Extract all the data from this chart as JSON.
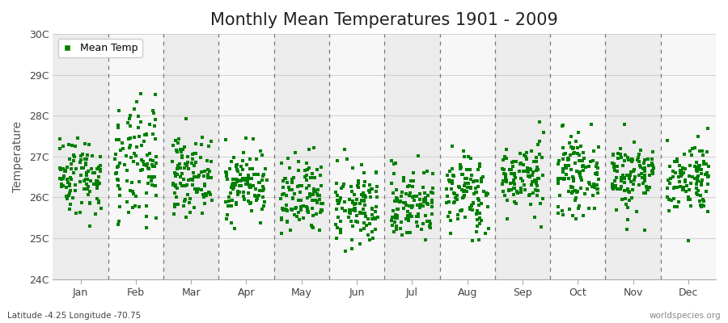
{
  "title": "Monthly Mean Temperatures 1901 - 2009",
  "ylabel": "Temperature",
  "xlabel_bottom_left": "Latitude -4.25 Longitude -70.75",
  "xlabel_bottom_right": "worldspecies.org",
  "legend_label": "Mean Temp",
  "marker_color": "#008000",
  "marker_size": 2.5,
  "months": [
    "Jan",
    "Feb",
    "Mar",
    "Apr",
    "May",
    "Jun",
    "Jul",
    "Aug",
    "Sep",
    "Oct",
    "Nov",
    "Dec"
  ],
  "month_positions": [
    1,
    2,
    3,
    4,
    5,
    6,
    7,
    8,
    9,
    10,
    11,
    12
  ],
  "ylim": [
    24,
    30
  ],
  "yticks": [
    24,
    25,
    26,
    27,
    28,
    29,
    30
  ],
  "ytick_labels": [
    "24C",
    "25C",
    "26C",
    "27C",
    "28C",
    "29C",
    "30C"
  ],
  "background_color": "#ffffff",
  "plot_bg_color": "#ffffff",
  "stripe_even": "#ececec",
  "stripe_odd": "#f7f7f7",
  "grid_color": "#d0d0d0",
  "dashed_line_color": "#777777",
  "title_fontsize": 15,
  "seed": 42,
  "n_years": 109,
  "base_temps": [
    26.55,
    26.75,
    26.55,
    26.35,
    25.95,
    25.75,
    25.85,
    26.1,
    26.5,
    26.55,
    26.55,
    26.5
  ],
  "std_temps": [
    0.48,
    0.75,
    0.45,
    0.42,
    0.5,
    0.48,
    0.45,
    0.5,
    0.42,
    0.45,
    0.45,
    0.45
  ]
}
